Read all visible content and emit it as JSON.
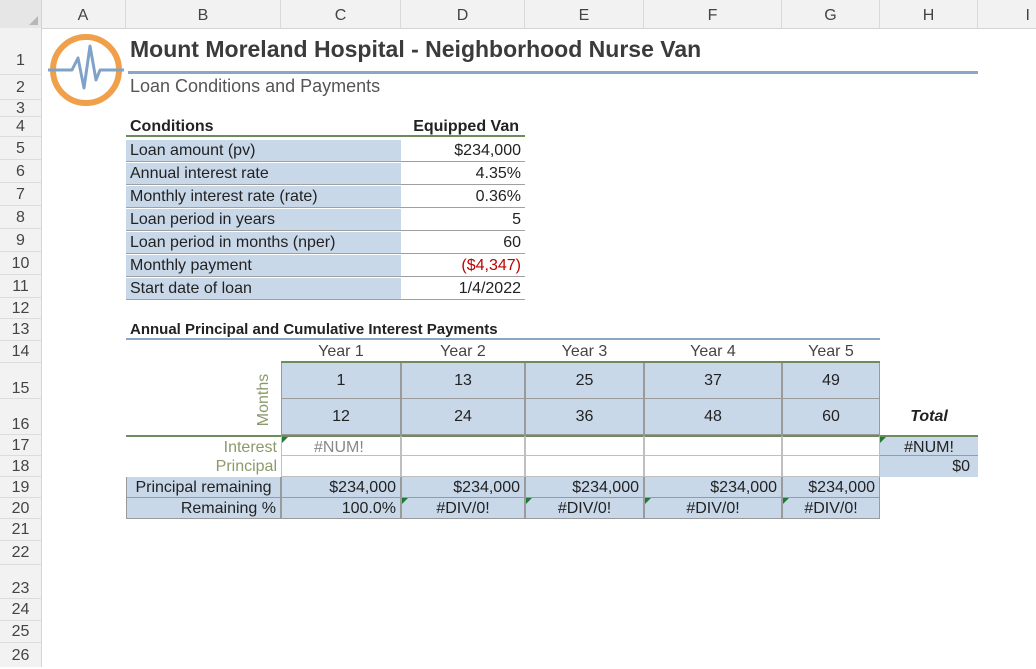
{
  "columns": [
    "A",
    "B",
    "C",
    "D",
    "E",
    "F",
    "G",
    "H",
    "I"
  ],
  "rows": [
    "1",
    "2",
    "3",
    "4",
    "5",
    "6",
    "7",
    "8",
    "9",
    "10",
    "11",
    "12",
    "13",
    "14",
    "15",
    "16",
    "17",
    "18",
    "19",
    "20",
    "21",
    "22",
    "23",
    "24",
    "25",
    "26"
  ],
  "title": "Mount Moreland Hospital - Neighborhood Nurse Van",
  "subtitle": "Loan Conditions and Payments",
  "conditions": {
    "header_label": "Conditions",
    "header_value": "Equipped Van",
    "rows": [
      {
        "label": "Loan amount (pv)",
        "value": "$234,000"
      },
      {
        "label": "Annual interest rate",
        "value": "4.35%"
      },
      {
        "label": "Monthly interest rate (rate)",
        "value": "0.36%"
      },
      {
        "label": "Loan period in years",
        "value": "5"
      },
      {
        "label": "Loan period in months (nper)",
        "value": "60"
      },
      {
        "label": "Monthly payment",
        "value": "($4,347)"
      },
      {
        "label": "Start date of loan",
        "value": "1/4/2022"
      }
    ]
  },
  "annual": {
    "heading": "Annual Principal and Cumulative Interest Payments",
    "years": [
      "Year 1",
      "Year 2",
      "Year 3",
      "Year 4",
      "Year 5"
    ],
    "months_label": "Months",
    "start_months": [
      "1",
      "13",
      "25",
      "37",
      "49"
    ],
    "end_months": [
      "12",
      "24",
      "36",
      "48",
      "60"
    ],
    "total_label": "Total",
    "interest_label": "Interest",
    "principal_label": "Principal",
    "interest_values": [
      "#NUM!",
      "",
      "",
      "",
      ""
    ],
    "principal_values": [
      "",
      "",
      "",
      "",
      ""
    ],
    "interest_total": "#NUM!",
    "principal_total": "$0",
    "remaining_label": "Principal remaining",
    "remaining_values": [
      "$234,000",
      "$234,000",
      "$234,000",
      "$234,000",
      "$234,000"
    ],
    "pct_label": "Remaining %",
    "pct_values": [
      "100.0%",
      "#DIV/0!",
      "#DIV/0!",
      "#DIV/0!",
      "#DIV/0!"
    ]
  },
  "colors": {
    "accent_blue": "#c9d8e9",
    "logo_orange": "#f0a04b",
    "logo_blue": "#7fa3c8",
    "error_red": "#c00000"
  }
}
